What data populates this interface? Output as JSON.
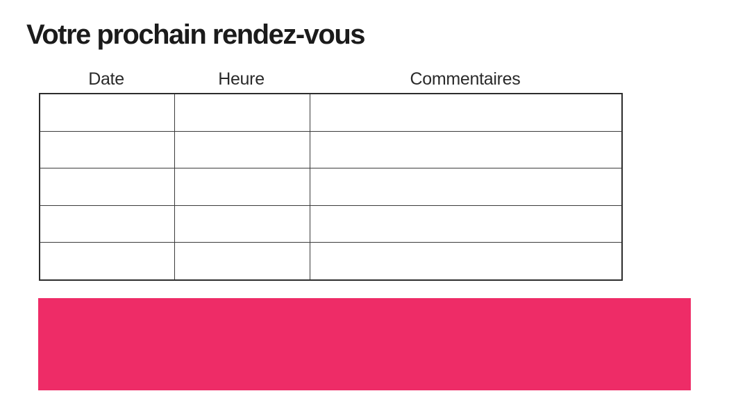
{
  "title": "Votre prochain rendez-vous",
  "table": {
    "headers": [
      "Date",
      "Heure",
      "Commentaires"
    ],
    "rows": [
      [
        "",
        "",
        ""
      ],
      [
        "",
        "",
        ""
      ],
      [
        "",
        "",
        ""
      ],
      [
        "",
        "",
        ""
      ],
      [
        "",
        "",
        ""
      ]
    ]
  },
  "banner": {
    "color": "#ee2c67"
  }
}
